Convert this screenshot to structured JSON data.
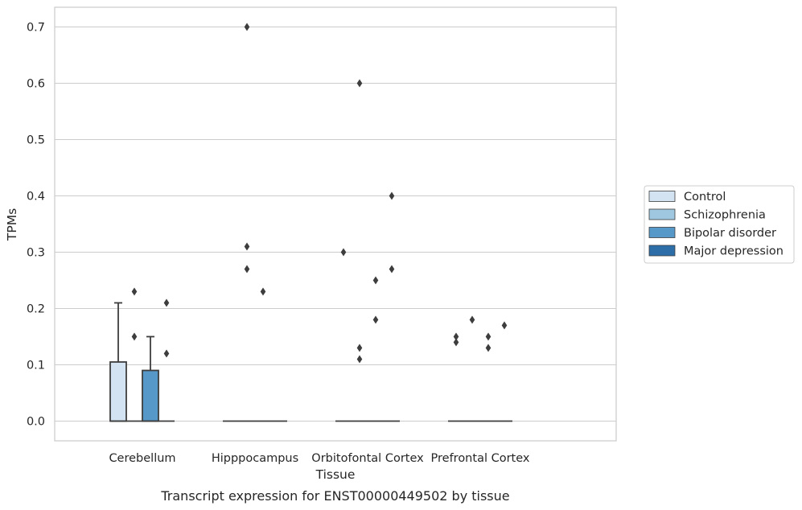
{
  "caption": "Transcript expression for ENST00000449502 by tissue",
  "chart_data": {
    "type": "box",
    "xlabel": "Tissue",
    "ylabel": "TPMs",
    "ylim": [
      -0.035,
      0.735
    ],
    "yticks": [
      0.0,
      0.1,
      0.2,
      0.3,
      0.4,
      0.5,
      0.6,
      0.7
    ],
    "ytick_labels": [
      "0.0",
      "0.1",
      "0.2",
      "0.3",
      "0.4",
      "0.5",
      "0.6",
      "0.7"
    ],
    "grid": "horizontal",
    "legend_position": "right",
    "categories": [
      "Cerebellum",
      "Hipppocampus",
      "Orbitofontal Cortex",
      "Prefrontal Cortex"
    ],
    "series": [
      {
        "name": "Control",
        "color": "#d4e3f2"
      },
      {
        "name": "Schizophrenia",
        "color": "#9fc7e0"
      },
      {
        "name": "Bipolar disorder",
        "color": "#5698c8"
      },
      {
        "name": "Major depression",
        "color": "#2d6da8"
      }
    ],
    "boxes": [
      [
        {
          "q1": 0.0,
          "median": 0.0,
          "q3": 0.105,
          "whisker_low": 0.0,
          "whisker_high": 0.21,
          "outliers": []
        },
        {
          "q1": 0.0,
          "median": 0.0,
          "q3": 0.0,
          "whisker_low": 0.0,
          "whisker_high": 0.0,
          "outliers": [
            0.23,
            0.15
          ]
        },
        {
          "q1": 0.0,
          "median": 0.0,
          "q3": 0.09,
          "whisker_low": 0.0,
          "whisker_high": 0.15,
          "outliers": []
        },
        {
          "q1": 0.0,
          "median": 0.0,
          "q3": 0.0,
          "whisker_low": 0.0,
          "whisker_high": 0.0,
          "outliers": [
            0.21,
            0.12
          ]
        }
      ],
      [
        {
          "q1": 0.0,
          "median": 0.0,
          "q3": 0.0,
          "whisker_low": 0.0,
          "whisker_high": 0.0,
          "outliers": []
        },
        {
          "q1": 0.0,
          "median": 0.0,
          "q3": 0.0,
          "whisker_low": 0.0,
          "whisker_high": 0.0,
          "outliers": [
            0.7,
            0.31,
            0.27
          ]
        },
        {
          "q1": 0.0,
          "median": 0.0,
          "q3": 0.0,
          "whisker_low": 0.0,
          "whisker_high": 0.0,
          "outliers": [
            0.23
          ]
        },
        {
          "q1": 0.0,
          "median": 0.0,
          "q3": 0.0,
          "whisker_low": 0.0,
          "whisker_high": 0.0,
          "outliers": []
        }
      ],
      [
        {
          "q1": 0.0,
          "median": 0.0,
          "q3": 0.0,
          "whisker_low": 0.0,
          "whisker_high": 0.0,
          "outliers": [
            0.3
          ]
        },
        {
          "q1": 0.0,
          "median": 0.0,
          "q3": 0.0,
          "whisker_low": 0.0,
          "whisker_high": 0.0,
          "outliers": [
            0.6,
            0.13,
            0.11
          ]
        },
        {
          "q1": 0.0,
          "median": 0.0,
          "q3": 0.0,
          "whisker_low": 0.0,
          "whisker_high": 0.0,
          "outliers": [
            0.25,
            0.18
          ]
        },
        {
          "q1": 0.0,
          "median": 0.0,
          "q3": 0.0,
          "whisker_low": 0.0,
          "whisker_high": 0.0,
          "outliers": [
            0.4,
            0.27
          ]
        }
      ],
      [
        {
          "q1": 0.0,
          "median": 0.0,
          "q3": 0.0,
          "whisker_low": 0.0,
          "whisker_high": 0.0,
          "outliers": [
            0.15,
            0.14
          ]
        },
        {
          "q1": 0.0,
          "median": 0.0,
          "q3": 0.0,
          "whisker_low": 0.0,
          "whisker_high": 0.0,
          "outliers": [
            0.18
          ]
        },
        {
          "q1": 0.0,
          "median": 0.0,
          "q3": 0.0,
          "whisker_low": 0.0,
          "whisker_high": 0.0,
          "outliers": [
            0.15,
            0.13
          ]
        },
        {
          "q1": 0.0,
          "median": 0.0,
          "q3": 0.0,
          "whisker_low": 0.0,
          "whisker_high": 0.0,
          "outliers": [
            0.17
          ]
        }
      ]
    ]
  }
}
